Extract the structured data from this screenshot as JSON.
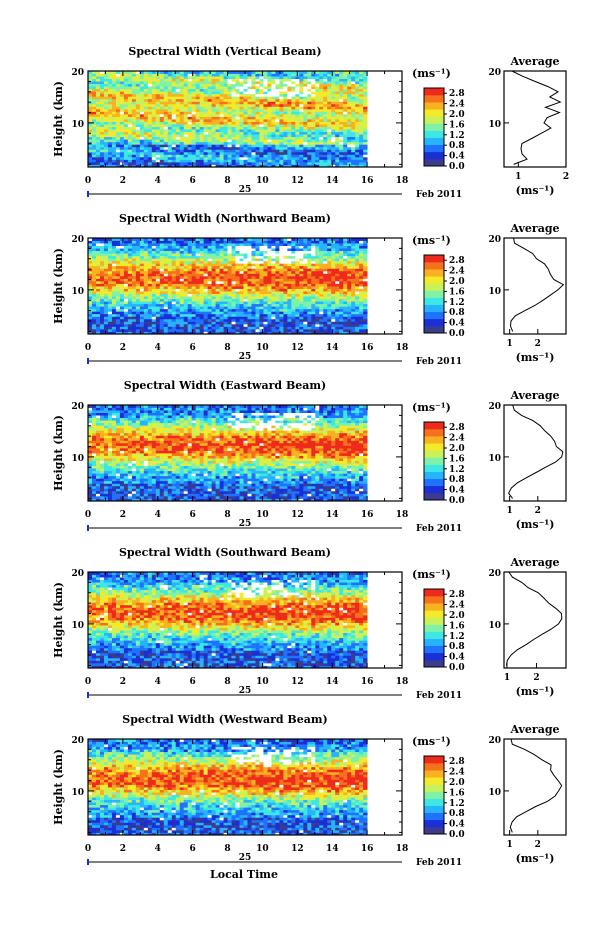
{
  "figure": {
    "x_axis_label": "Local Time",
    "date_prefix": "25",
    "date_suffix": "Feb 2011",
    "colorbar_unit": "(ms⁻¹)",
    "average_title": "Average",
    "average_xlabel": "(ms⁻¹)",
    "height_label": "Height (km)"
  },
  "chart_data": [
    {
      "type": "heatmap",
      "title": "Spectral Width (Vertical Beam)",
      "xlabel": "Local Time",
      "ylabel": "Height (km)",
      "x_ticks": [
        0,
        2,
        4,
        6,
        8,
        10,
        12,
        14,
        16,
        18
      ],
      "y_ticks": [
        10,
        20
      ],
      "xlim": [
        0,
        18
      ],
      "ylim": [
        1.5,
        20
      ],
      "data_end_time": 16,
      "colorbar": {
        "unit": "(ms⁻¹)",
        "ticks": [
          "0.0",
          "0.4",
          "0.8",
          "1.2",
          "1.6",
          "2.0",
          "2.4",
          "2.8"
        ],
        "range": [
          0,
          3.0
        ]
      },
      "colors": [
        "#3b3b8f",
        "#1a2fd6",
        "#1f72ff",
        "#27b4ff",
        "#3de7e4",
        "#7ff2a8",
        "#c9f25a",
        "#f4ea2c",
        "#f9b11f",
        "#f5711c",
        "#ee2a1c"
      ],
      "average_profile": {
        "xlim": [
          0.7,
          2.0
        ],
        "x_ticks": [
          1,
          2
        ],
        "height": [
          2,
          3,
          4,
          5,
          6,
          7,
          8,
          9,
          10,
          11,
          12,
          13,
          14,
          15,
          16,
          17,
          18,
          19,
          20
        ],
        "value": [
          0.95,
          1.2,
          1.05,
          1.0,
          1.1,
          1.25,
          1.45,
          1.7,
          1.55,
          1.65,
          1.85,
          1.6,
          1.9,
          1.7,
          1.85,
          1.6,
          1.3,
          1.05,
          0.9
        ]
      }
    },
    {
      "type": "heatmap",
      "title": "Spectral Width (Northward Beam)",
      "xlabel": "Local Time",
      "ylabel": "Height (km)",
      "x_ticks": [
        0,
        2,
        4,
        6,
        8,
        10,
        12,
        14,
        16,
        18
      ],
      "y_ticks": [
        10,
        20
      ],
      "xlim": [
        0,
        18
      ],
      "ylim": [
        1.5,
        20
      ],
      "data_end_time": 16,
      "colorbar": {
        "unit": "(ms⁻¹)",
        "ticks": [
          "0.0",
          "0.4",
          "0.8",
          "1.2",
          "1.6",
          "2.0",
          "2.4",
          "2.8"
        ],
        "range": [
          0,
          3.0
        ]
      },
      "colors": [
        "#3b3b8f",
        "#1a2fd6",
        "#1f72ff",
        "#27b4ff",
        "#3de7e4",
        "#7ff2a8",
        "#c9f25a",
        "#f4ea2c",
        "#f9b11f",
        "#f5711c",
        "#ee2a1c"
      ],
      "average_profile": {
        "xlim": [
          0.8,
          3.0
        ],
        "x_ticks": [
          1,
          2
        ],
        "height": [
          2,
          3,
          4,
          5,
          6,
          7,
          8,
          9,
          10,
          11,
          12,
          13,
          14,
          15,
          16,
          17,
          18,
          19,
          20
        ],
        "value": [
          1.1,
          1.0,
          1.05,
          1.25,
          1.55,
          1.85,
          2.15,
          2.5,
          2.75,
          2.85,
          2.6,
          2.5,
          2.35,
          2.2,
          2.0,
          1.8,
          1.5,
          1.2,
          1.1
        ]
      }
    },
    {
      "type": "heatmap",
      "title": "Spectral Width (Eastward Beam)",
      "xlabel": "Local Time",
      "ylabel": "Height (km)",
      "x_ticks": [
        0,
        2,
        4,
        6,
        8,
        10,
        12,
        14,
        16,
        18
      ],
      "y_ticks": [
        10,
        20
      ],
      "xlim": [
        0,
        18
      ],
      "ylim": [
        1.5,
        20
      ],
      "data_end_time": 16,
      "colorbar": {
        "unit": "(ms⁻¹)",
        "ticks": [
          "0.0",
          "0.4",
          "0.8",
          "1.2",
          "1.6",
          "2.0",
          "2.4",
          "2.8"
        ],
        "range": [
          0,
          3.0
        ]
      },
      "colors": [
        "#3b3b8f",
        "#1a2fd6",
        "#1f72ff",
        "#27b4ff",
        "#3de7e4",
        "#7ff2a8",
        "#c9f25a",
        "#f4ea2c",
        "#f9b11f",
        "#f5711c",
        "#ee2a1c"
      ],
      "average_profile": {
        "xlim": [
          0.8,
          3.0
        ],
        "x_ticks": [
          1,
          2
        ],
        "height": [
          2,
          3,
          4,
          5,
          6,
          7,
          8,
          9,
          10,
          11,
          12,
          13,
          14,
          15,
          16,
          17,
          18,
          19,
          20
        ],
        "value": [
          1.05,
          1.0,
          1.1,
          1.3,
          1.6,
          1.95,
          2.3,
          2.6,
          2.8,
          2.9,
          2.7,
          2.6,
          2.45,
          2.3,
          2.05,
          1.8,
          1.45,
          1.15,
          1.05
        ]
      }
    },
    {
      "type": "heatmap",
      "title": "Spectral Width (Southward Beam)",
      "xlabel": "Local Time",
      "ylabel": "Height (km)",
      "x_ticks": [
        0,
        2,
        4,
        6,
        8,
        10,
        12,
        14,
        16,
        18
      ],
      "y_ticks": [
        10,
        20
      ],
      "xlim": [
        0,
        18
      ],
      "ylim": [
        1.5,
        20
      ],
      "data_end_time": 16,
      "colorbar": {
        "unit": "(ms⁻¹)",
        "ticks": [
          "0.0",
          "0.4",
          "0.8",
          "1.2",
          "1.6",
          "2.0",
          "2.4",
          "2.8"
        ],
        "range": [
          0,
          3.0
        ]
      },
      "colors": [
        "#3b3b8f",
        "#1a2fd6",
        "#1f72ff",
        "#27b4ff",
        "#3de7e4",
        "#7ff2a8",
        "#c9f25a",
        "#f4ea2c",
        "#f9b11f",
        "#f5711c",
        "#ee2a1c"
      ],
      "average_profile": {
        "xlim": [
          0.9,
          3.0
        ],
        "x_ticks": [
          1,
          2
        ],
        "height": [
          2,
          3,
          4,
          5,
          6,
          7,
          8,
          9,
          10,
          11,
          12,
          13,
          14,
          15,
          16,
          17,
          18,
          19,
          20
        ],
        "value": [
          1.0,
          1.05,
          1.15,
          1.35,
          1.65,
          1.95,
          2.25,
          2.55,
          2.75,
          2.85,
          2.8,
          2.6,
          2.45,
          2.25,
          2.05,
          1.75,
          1.45,
          1.2,
          1.05
        ]
      }
    },
    {
      "type": "heatmap",
      "title": "Spectral Width (Westward Beam)",
      "xlabel": "Local Time",
      "ylabel": "Height (km)",
      "x_ticks": [
        0,
        2,
        4,
        6,
        8,
        10,
        12,
        14,
        16,
        18
      ],
      "y_ticks": [
        10,
        20
      ],
      "xlim": [
        0,
        18
      ],
      "ylim": [
        1.5,
        20
      ],
      "data_end_time": 16,
      "colorbar": {
        "unit": "(ms⁻¹)",
        "ticks": [
          "0.0",
          "0.4",
          "0.8",
          "1.2",
          "1.6",
          "2.0",
          "2.4",
          "2.8"
        ],
        "range": [
          0,
          3.0
        ]
      },
      "colors": [
        "#3b3b8f",
        "#1a2fd6",
        "#1f72ff",
        "#27b4ff",
        "#3de7e4",
        "#7ff2a8",
        "#c9f25a",
        "#f4ea2c",
        "#f9b11f",
        "#f5711c",
        "#ee2a1c"
      ],
      "average_profile": {
        "xlim": [
          0.8,
          3.0
        ],
        "x_ticks": [
          1,
          2
        ],
        "height": [
          2,
          3,
          4,
          5,
          6,
          7,
          8,
          9,
          10,
          11,
          12,
          13,
          14,
          15,
          16,
          17,
          18,
          19,
          20
        ],
        "value": [
          1.05,
          1.0,
          1.1,
          1.3,
          1.6,
          1.9,
          2.3,
          2.55,
          2.75,
          2.85,
          2.7,
          2.55,
          2.4,
          2.45,
          2.1,
          1.85,
          1.5,
          1.15,
          1.0
        ]
      }
    }
  ]
}
